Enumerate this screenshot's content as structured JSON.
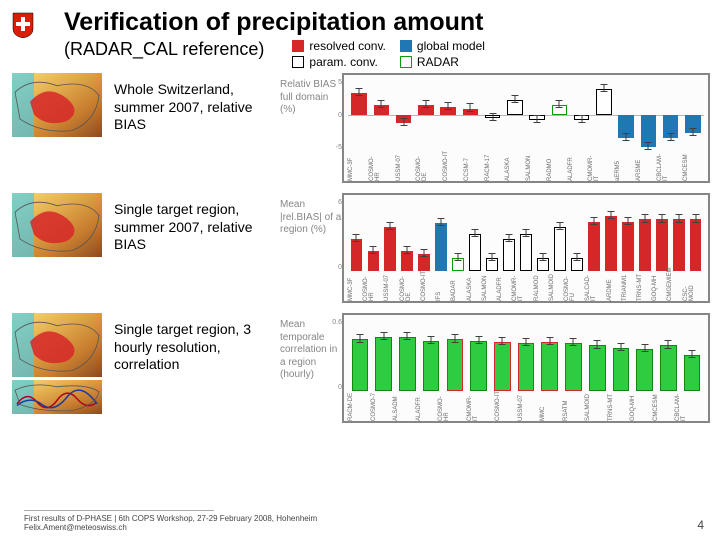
{
  "header": {
    "title": "Verification of precipitation amount",
    "subtitle": "(RADAR_CAL reference)"
  },
  "legend": {
    "items": [
      {
        "label": "resolved conv.",
        "fill": "#d62728",
        "border": "#d62728"
      },
      {
        "label": "global model",
        "fill": "#1f77b4",
        "border": "#1f77b4"
      },
      {
        "label": "param. conv.",
        "fill": "#ffffff",
        "border": "#000000"
      },
      {
        "label": "RADAR",
        "fill": "#ffffff",
        "border": "#00a000"
      }
    ]
  },
  "rows": [
    {
      "label": "Whole Switzerland, summer 2007, relative BIAS",
      "ylabel": "Relativ BIAS full domain (%)",
      "ymin": -5,
      "ymax": 5,
      "zero_at": 0.5,
      "models": [
        "MMC-3F",
        "COSMO-HR",
        "USSM-07",
        "COSMO-DE",
        "COSMO-IT",
        "CCSM-7",
        "RACM-17",
        "ALASKA",
        "SALMON",
        "RADMO",
        "ALADFR",
        "CMOMR-IT",
        "aERM5",
        "ARSME",
        "CBCLAM-IT",
        "CMCESM"
      ],
      "values": [
        3.1,
        1.4,
        -1.1,
        1.4,
        1.1,
        0.9,
        -0.4,
        2.1,
        -0.7,
        1.4,
        -0.7,
        3.6,
        -3.2,
        -4.4,
        -3.2,
        -2.5
      ],
      "colors": [
        "#d62728",
        "#d62728",
        "#d62728",
        "#d62728",
        "#d62728",
        "#d62728",
        "#ffffff",
        "#ffffff",
        "#ffffff",
        "#ffffff",
        "#ffffff",
        "#ffffff",
        "#1f77b4",
        "#1f77b4",
        "#1f77b4",
        "#1f77b4"
      ],
      "borders": [
        "#d62728",
        "#d62728",
        "#d62728",
        "#d62728",
        "#d62728",
        "#d62728",
        "#000000",
        "#000000",
        "#000000",
        "#00a000",
        "#000000",
        "#000000",
        "#1f77b4",
        "#1f77b4",
        "#1f77b4",
        "#1f77b4"
      ]
    },
    {
      "label": "Single target region, summer 2007, relative BIAS",
      "ylabel": "Mean |rel.BIAS| of a region (%)",
      "ymin": 0,
      "ymax": 6,
      "zero_at": 1.0,
      "models": [
        "MMC-3F",
        "COSMO-HR",
        "USSM-07",
        "COSMO-DE",
        "COSMO-IT",
        "IFS",
        "BADAR",
        "ALASKA",
        "SALMON",
        "ALADFR",
        "CMOMR-IT",
        "RALMOD",
        "SALMOID",
        "COSMO-FU",
        "SALCAD-IT",
        "ARDME",
        "TRIANM1",
        "TRNS-MT",
        "GOQ-MH",
        "CMGEMIEM",
        "CSC-MOID"
      ],
      "values": [
        2.7,
        1.7,
        3.7,
        1.7,
        1.4,
        4.0,
        1.1,
        3.1,
        1.1,
        2.7,
        3.1,
        1.1,
        3.7,
        1.1,
        4.1,
        4.6,
        4.1,
        4.3,
        4.3,
        4.3,
        4.3
      ],
      "colors": [
        "#d62728",
        "#d62728",
        "#d62728",
        "#d62728",
        "#d62728",
        "#1f77b4",
        "#ffffff",
        "#ffffff",
        "#ffffff",
        "#ffffff",
        "#ffffff",
        "#ffffff",
        "#ffffff",
        "#ffffff",
        "#d62728",
        "#d62728",
        "#d62728",
        "#d62728",
        "#d62728",
        "#d62728",
        "#d62728"
      ],
      "borders": [
        "#d62728",
        "#d62728",
        "#d62728",
        "#d62728",
        "#d62728",
        "#1f77b4",
        "#00a000",
        "#000000",
        "#000000",
        "#000000",
        "#000000",
        "#000000",
        "#000000",
        "#000000",
        "#d62728",
        "#d62728",
        "#d62728",
        "#d62728",
        "#d62728",
        "#d62728",
        "#d62728"
      ]
    },
    {
      "label": "Single target region, 3 hourly resolution, correlation",
      "ylabel": "Mean temporale correlation in a region (hourly)",
      "ymin": 0,
      "ymax": 0.6,
      "zero_at": 1.0,
      "models": [
        "RACM-DE",
        "COSMO-7",
        "ALSADM",
        "ALADFR",
        "COSMO-HR",
        "CMOMR-IT",
        "COSMO-IT",
        "USSM-07",
        "MMC",
        "RSATM",
        "SALMOID",
        "TRNS-MT",
        "GOQ-MH",
        "CMCESM",
        "CBCLAM-IT"
      ],
      "values": [
        0.43,
        0.45,
        0.45,
        0.42,
        0.43,
        0.42,
        0.41,
        0.4,
        0.41,
        0.4,
        0.38,
        0.36,
        0.35,
        0.38,
        0.3
      ],
      "colors": [
        "#2ecc40",
        "#2ecc40",
        "#2ecc40",
        "#2ecc40",
        "#2ecc40",
        "#2ecc40",
        "#2ecc40",
        "#2ecc40",
        "#2ecc40",
        "#2ecc40",
        "#2ecc40",
        "#2ecc40",
        "#2ecc40",
        "#2ecc40",
        "#2ecc40"
      ],
      "borders": [
        "#108810",
        "#108810",
        "#108810",
        "#108810",
        "#d62728",
        "#108810",
        "#d62728",
        "#d62728",
        "#d62728",
        "#d62728",
        "#108810",
        "#108810",
        "#108810",
        "#108810",
        "#108810"
      ]
    }
  ],
  "footer": {
    "line1": "First results of D-PHASE | 6th COPS Workshop, 27-29 February 2008, Hohenheim",
    "line2": "Felix.Ament@meteoswiss.ch",
    "page": "4"
  },
  "thumb": {
    "bg_stops": [
      "#f5e07a",
      "#e0a84a",
      "#c77c2e",
      "#8a4b22"
    ],
    "blob": "#d62728",
    "cyan": "#4fc9e6",
    "line": "#b00020"
  }
}
